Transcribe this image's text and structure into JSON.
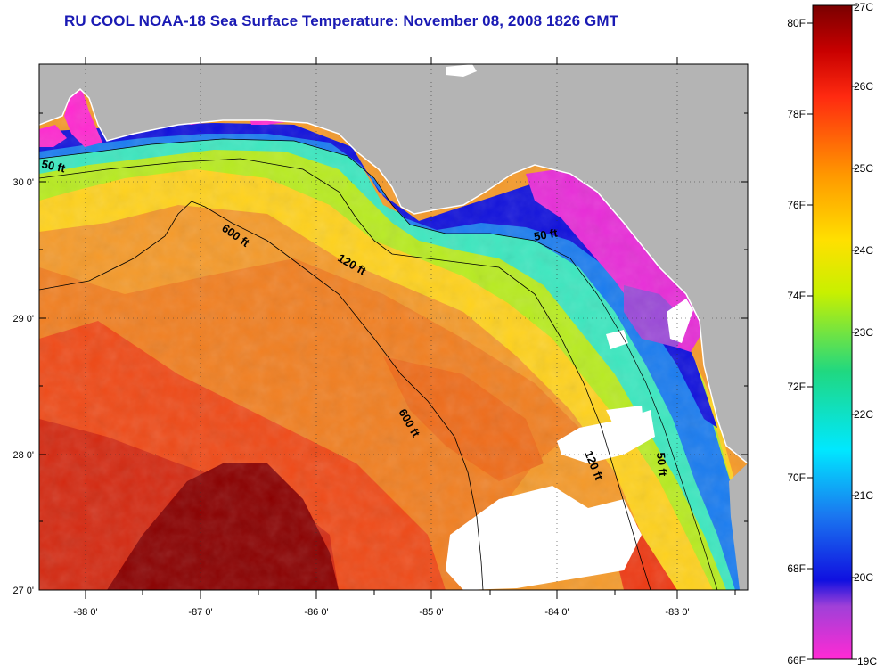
{
  "title": "RU COOL  NOAA-18  Sea Surface Temperature:  November 08, 2008 1826 GMT",
  "lat_ticks": [
    "30 0'",
    "29 0'",
    "28 0'",
    "27 0'"
  ],
  "lon_ticks": [
    "-88 0'",
    "-87 0'",
    "-86 0'",
    "-85 0'",
    "-84 0'",
    "-83 0'"
  ],
  "contour_labels": [
    "50 ft",
    "600 ft",
    "120 ft",
    "50 ft",
    "600 ft",
    "120 ft",
    "50 ft"
  ],
  "colorbar": {
    "fahrenheit": [
      "80F",
      "78F",
      "76F",
      "74F",
      "72F",
      "70F",
      "68F",
      "66F"
    ],
    "celsius": [
      "27C",
      "26C",
      "25C",
      "24C",
      "23C",
      "22C",
      "21C",
      "20C",
      "19C"
    ]
  },
  "colors": {
    "land": "#b4b4b4",
    "cloud": "#ffffff",
    "title": "#1a1ab4"
  }
}
